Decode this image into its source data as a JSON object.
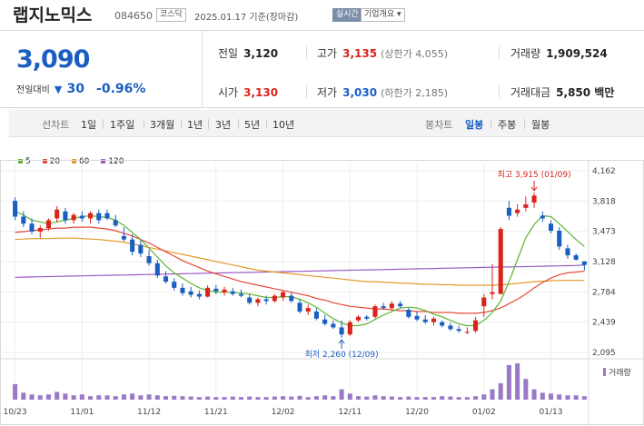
{
  "header": {
    "name": "랩지노믹스",
    "code": "084650",
    "market": "코스닥",
    "date": "2025.01.17 기준(장마감)",
    "live": "실시간",
    "info": "기업개요 ▾"
  },
  "summary": {
    "price": "3,090",
    "change_label": "전일대비",
    "change_arrow": "▼",
    "change_value": "30",
    "change_pct": "-0.96%",
    "prev_close_label": "전일",
    "prev_close": "3,120",
    "high_label": "고가",
    "high": "3,135",
    "upper_limit": "(상한가 4,055)",
    "volume_label": "거래량",
    "volume": "1,909,524",
    "open_label": "시가",
    "open": "3,130",
    "low_label": "저가",
    "low": "3,030",
    "lower_limit": "(하한가 2,185)",
    "amount_label": "거래대금",
    "amount": "5,850 백만"
  },
  "period_bar": {
    "line_label": "선차트",
    "periods": [
      "1일",
      "1주일",
      "3개월",
      "1년",
      "3년",
      "5년",
      "10년"
    ],
    "candle_label": "봉차트",
    "candles": [
      "일봉",
      "주봉",
      "월봉"
    ],
    "active_candle": "일봉"
  },
  "colors": {
    "up": "#d9241c",
    "down": "#1b5ec2",
    "ma5": "#5cb531",
    "ma20": "#e34a3a",
    "ma60": "#e39a2a",
    "ma120": "#9a5bc4",
    "volume": "#9a79c7"
  },
  "chart_data": {
    "type": "candlestick",
    "legend": [
      "5",
      "20",
      "60",
      "120"
    ],
    "y_ticks": [
      "4,162",
      "3,818",
      "3,473",
      "3,128",
      "2,784",
      "2,439",
      "2,095"
    ],
    "y_range": [
      2095,
      4162
    ],
    "x_ticks": [
      "10/23",
      "11/01",
      "11/12",
      "11/21",
      "12/02",
      "12/11",
      "12/20",
      "01/02",
      "01/13"
    ],
    "max_label": "최고 3,915 (01/09)",
    "min_label": "최저 2,260 (12/09)",
    "volume_label": "거래량",
    "candles": [
      [
        3820,
        3860,
        3600,
        3640
      ],
      [
        3640,
        3700,
        3520,
        3560
      ],
      [
        3560,
        3620,
        3440,
        3470
      ],
      [
        3470,
        3540,
        3400,
        3510
      ],
      [
        3510,
        3620,
        3480,
        3600
      ],
      [
        3620,
        3760,
        3580,
        3720
      ],
      [
        3700,
        3740,
        3560,
        3600
      ],
      [
        3600,
        3680,
        3560,
        3660
      ],
      [
        3650,
        3700,
        3580,
        3620
      ],
      [
        3620,
        3700,
        3560,
        3680
      ],
      [
        3680,
        3720,
        3560,
        3600
      ],
      [
        3680,
        3720,
        3600,
        3620
      ],
      [
        3600,
        3660,
        3520,
        3540
      ],
      [
        3420,
        3520,
        3360,
        3380
      ],
      [
        3380,
        3440,
        3200,
        3240
      ],
      [
        3320,
        3380,
        3180,
        3220
      ],
      [
        3190,
        3260,
        3080,
        3110
      ],
      [
        3110,
        3150,
        2940,
        2970
      ],
      [
        2960,
        3020,
        2880,
        2900
      ],
      [
        2900,
        2940,
        2800,
        2830
      ],
      [
        2830,
        2880,
        2740,
        2770
      ],
      [
        2790,
        2840,
        2720,
        2750
      ],
      [
        2760,
        2800,
        2700,
        2730
      ],
      [
        2730,
        2860,
        2720,
        2830
      ],
      [
        2820,
        2860,
        2760,
        2790
      ],
      [
        2780,
        2840,
        2740,
        2810
      ],
      [
        2790,
        2830,
        2740,
        2760
      ],
      [
        2760,
        2810,
        2720,
        2740
      ],
      [
        2720,
        2760,
        2640,
        2660
      ],
      [
        2660,
        2720,
        2620,
        2700
      ],
      [
        2700,
        2740,
        2640,
        2680
      ],
      [
        2680,
        2760,
        2660,
        2740
      ],
      [
        2720,
        2800,
        2680,
        2780
      ],
      [
        2740,
        2780,
        2660,
        2680
      ],
      [
        2660,
        2700,
        2540,
        2560
      ],
      [
        2560,
        2640,
        2520,
        2600
      ],
      [
        2560,
        2600,
        2460,
        2480
      ],
      [
        2470,
        2520,
        2400,
        2420
      ],
      [
        2420,
        2460,
        2360,
        2380
      ],
      [
        2380,
        2460,
        2260,
        2300
      ],
      [
        2300,
        2460,
        2280,
        2440
      ],
      [
        2460,
        2520,
        2440,
        2500
      ],
      [
        2500,
        2520,
        2460,
        2480
      ],
      [
        2500,
        2640,
        2480,
        2620
      ],
      [
        2620,
        2660,
        2580,
        2600
      ],
      [
        2600,
        2680,
        2580,
        2650
      ],
      [
        2650,
        2680,
        2600,
        2620
      ],
      [
        2580,
        2600,
        2480,
        2500
      ],
      [
        2510,
        2560,
        2450,
        2470
      ],
      [
        2470,
        2520,
        2420,
        2440
      ],
      [
        2440,
        2500,
        2400,
        2480
      ],
      [
        2440,
        2460,
        2380,
        2400
      ],
      [
        2400,
        2430,
        2340,
        2360
      ],
      [
        2360,
        2400,
        2320,
        2340
      ],
      [
        2330,
        2380,
        2300,
        2330
      ],
      [
        2340,
        2500,
        2320,
        2460
      ],
      [
        2620,
        2760,
        2500,
        2720
      ],
      [
        2760,
        3100,
        2700,
        2780
      ],
      [
        2760,
        3520,
        2760,
        3500
      ],
      [
        3740,
        3820,
        3600,
        3650
      ],
      [
        3680,
        3780,
        3640,
        3720
      ],
      [
        3740,
        3870,
        3700,
        3780
      ],
      [
        3800,
        3915,
        3740,
        3880
      ],
      [
        3650,
        3700,
        3580,
        3620
      ],
      [
        3560,
        3600,
        3450,
        3480
      ],
      [
        3480,
        3520,
        3260,
        3300
      ],
      [
        3280,
        3320,
        3160,
        3200
      ],
      [
        3200,
        3220,
        3140,
        3150
      ],
      [
        3130,
        3135,
        3030,
        3090
      ]
    ],
    "volumes": [
      90,
      40,
      30,
      25,
      30,
      45,
      35,
      25,
      30,
      20,
      25,
      25,
      20,
      30,
      35,
      25,
      30,
      25,
      20,
      22,
      20,
      18,
      15,
      18,
      15,
      15,
      18,
      15,
      18,
      15,
      15,
      18,
      20,
      18,
      22,
      15,
      20,
      25,
      20,
      60,
      35,
      20,
      18,
      25,
      20,
      18,
      15,
      18,
      15,
      15,
      15,
      20,
      18,
      15,
      15,
      20,
      30,
      60,
      95,
      200,
      210,
      120,
      60,
      40,
      35,
      30,
      25,
      25,
      20
    ],
    "ma5": [
      3700,
      3660,
      3600,
      3580,
      3560,
      3580,
      3600,
      3620,
      3640,
      3650,
      3640,
      3630,
      3600,
      3540,
      3460,
      3380,
      3280,
      3180,
      3080,
      3000,
      2940,
      2880,
      2830,
      2800,
      2780,
      2780,
      2780,
      2770,
      2760,
      2740,
      2720,
      2720,
      2730,
      2730,
      2700,
      2660,
      2610,
      2540,
      2480,
      2430,
      2400,
      2400,
      2420,
      2470,
      2520,
      2560,
      2600,
      2610,
      2600,
      2570,
      2530,
      2500,
      2460,
      2420,
      2400,
      2400,
      2460,
      2550,
      2680,
      2900,
      3150,
      3400,
      3550,
      3650,
      3640,
      3560,
      3470,
      3380,
      3300
    ],
    "ma20": [
      3460,
      3470,
      3480,
      3490,
      3500,
      3510,
      3510,
      3520,
      3520,
      3520,
      3510,
      3500,
      3480,
      3450,
      3420,
      3380,
      3340,
      3290,
      3240,
      3190,
      3140,
      3100,
      3060,
      3020,
      2990,
      2960,
      2930,
      2900,
      2880,
      2860,
      2840,
      2820,
      2800,
      2780,
      2760,
      2740,
      2710,
      2690,
      2660,
      2640,
      2620,
      2610,
      2600,
      2590,
      2590,
      2580,
      2570,
      2570,
      2560,
      2560,
      2550,
      2550,
      2550,
      2540,
      2540,
      2540,
      2550,
      2570,
      2600,
      2650,
      2700,
      2760,
      2830,
      2890,
      2940,
      2980,
      3000,
      3010,
      3020
    ],
    "ma60": [
      3380,
      3385,
      3390,
      3390,
      3390,
      3395,
      3395,
      3395,
      3390,
      3385,
      3380,
      3370,
      3360,
      3350,
      3330,
      3310,
      3290,
      3270,
      3250,
      3230,
      3210,
      3190,
      3170,
      3150,
      3130,
      3110,
      3090,
      3070,
      3050,
      3030,
      3020,
      3010,
      3000,
      2990,
      2980,
      2970,
      2960,
      2950,
      2940,
      2930,
      2920,
      2910,
      2900,
      2900,
      2895,
      2890,
      2885,
      2880,
      2875,
      2870,
      2870,
      2865,
      2865,
      2860,
      2860,
      2860,
      2860,
      2860,
      2865,
      2870,
      2880,
      2890,
      2900,
      2905,
      2910,
      2915,
      2915,
      2915,
      2915
    ],
    "ma120": [
      2950,
      2952,
      2954,
      2956,
      2958,
      2960,
      2962,
      2964,
      2966,
      2968,
      2970,
      2972,
      2974,
      2976,
      2978,
      2980,
      2982,
      2984,
      2986,
      2988,
      2990,
      2992,
      2994,
      2996,
      2998,
      3000,
      3002,
      3004,
      3006,
      3008,
      3010,
      3012,
      3014,
      3016,
      3018,
      3020,
      3022,
      3024,
      3026,
      3028,
      3030,
      3032,
      3034,
      3036,
      3038,
      3040,
      3042,
      3044,
      3046,
      3048,
      3050,
      3052,
      3054,
      3056,
      3058,
      3060,
      3062,
      3064,
      3066,
      3068,
      3070,
      3072,
      3074,
      3076,
      3078,
      3080,
      3082,
      3084,
      3090
    ]
  }
}
